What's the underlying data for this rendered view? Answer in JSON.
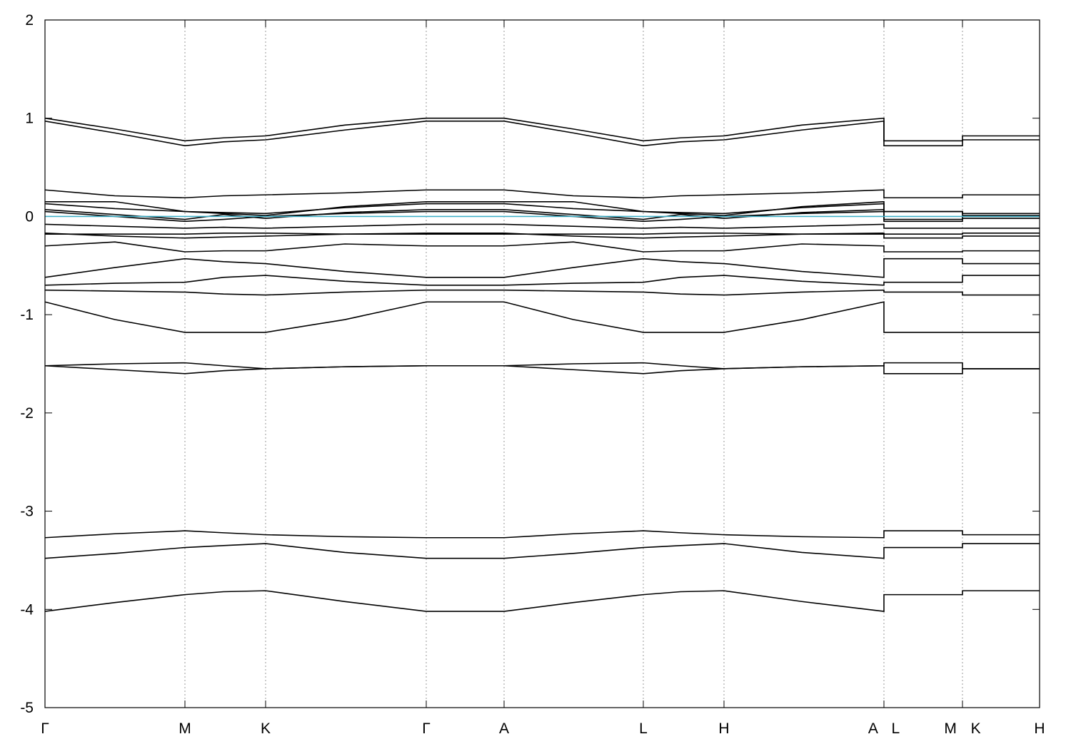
{
  "chart_data": {
    "type": "line",
    "x": [
      0,
      0.98,
      1.96,
      2.5,
      3.09,
      4.2,
      5.34,
      5.9,
      6.43,
      7.4,
      8.38,
      8.9,
      9.51,
      10.6,
      11.75,
      11.75,
      12.85,
      12.85,
      13.93
    ],
    "xlim": [
      0,
      13.93
    ],
    "xticks": [
      {
        "value": 0,
        "label": "Γ"
      },
      {
        "value": 1.96,
        "label": "M"
      },
      {
        "value": 3.09,
        "label": "K"
      },
      {
        "value": 5.34,
        "label": "Γ"
      },
      {
        "value": 6.43,
        "label": "A"
      },
      {
        "value": 8.38,
        "label": "L"
      },
      {
        "value": 9.51,
        "label": "H"
      },
      {
        "value": 11.75,
        "label": "A L"
      },
      {
        "value": 12.85,
        "label": "M K"
      },
      {
        "value": 13.93,
        "label": "H"
      }
    ],
    "ylim": [
      -5,
      2
    ],
    "yticks": [
      -5,
      -4,
      -3,
      -2,
      -1,
      0,
      1,
      2
    ],
    "grid": true,
    "series": [
      {
        "color": "#000000",
        "values": [
          -4.02,
          -3.93,
          -3.85,
          -3.82,
          -3.81,
          -3.92,
          -4.02,
          -4.02,
          -4.02,
          -3.93,
          -3.85,
          -3.82,
          -3.81,
          -3.92,
          -4.02,
          -3.85,
          -3.85,
          -3.81,
          -3.81
        ]
      },
      {
        "color": "#000000",
        "values": [
          -3.48,
          -3.43,
          -3.37,
          -3.35,
          -3.33,
          -3.42,
          -3.48,
          -3.48,
          -3.48,
          -3.43,
          -3.37,
          -3.35,
          -3.33,
          -3.42,
          -3.48,
          -3.37,
          -3.37,
          -3.33,
          -3.33
        ]
      },
      {
        "color": "#000000",
        "values": [
          -3.27,
          -3.23,
          -3.2,
          -3.22,
          -3.24,
          -3.26,
          -3.27,
          -3.27,
          -3.27,
          -3.23,
          -3.2,
          -3.22,
          -3.24,
          -3.26,
          -3.27,
          -3.2,
          -3.2,
          -3.24,
          -3.24
        ]
      },
      {
        "color": "#000000",
        "values": [
          -1.52,
          -1.5,
          -1.49,
          -1.52,
          -1.55,
          -1.53,
          -1.52,
          -1.52,
          -1.52,
          -1.5,
          -1.49,
          -1.52,
          -1.55,
          -1.53,
          -1.52,
          -1.49,
          -1.49,
          -1.55,
          -1.55
        ]
      },
      {
        "color": "#000000",
        "values": [
          -1.52,
          -1.56,
          -1.6,
          -1.57,
          -1.55,
          -1.53,
          -1.52,
          -1.52,
          -1.52,
          -1.56,
          -1.6,
          -1.57,
          -1.55,
          -1.53,
          -1.52,
          -1.6,
          -1.6,
          -1.55,
          -1.55
        ]
      },
      {
        "color": "#000000",
        "values": [
          -0.87,
          -1.05,
          -1.18,
          -1.18,
          -1.18,
          -1.05,
          -0.87,
          -0.87,
          -0.87,
          -1.05,
          -1.18,
          -1.18,
          -1.18,
          -1.05,
          -0.87,
          -1.18,
          -1.18,
          -1.18,
          -1.18
        ]
      },
      {
        "color": "#000000",
        "values": [
          -0.75,
          -0.76,
          -0.77,
          -0.79,
          -0.8,
          -0.77,
          -0.75,
          -0.75,
          -0.75,
          -0.76,
          -0.77,
          -0.79,
          -0.8,
          -0.77,
          -0.75,
          -0.77,
          -0.77,
          -0.8,
          -0.8
        ]
      },
      {
        "color": "#000000",
        "values": [
          -0.7,
          -0.68,
          -0.67,
          -0.62,
          -0.6,
          -0.66,
          -0.7,
          -0.7,
          -0.7,
          -0.68,
          -0.67,
          -0.62,
          -0.6,
          -0.66,
          -0.7,
          -0.67,
          -0.67,
          -0.6,
          -0.6
        ]
      },
      {
        "color": "#000000",
        "values": [
          -0.62,
          -0.52,
          -0.43,
          -0.46,
          -0.48,
          -0.56,
          -0.62,
          -0.62,
          -0.62,
          -0.52,
          -0.43,
          -0.46,
          -0.48,
          -0.56,
          -0.62,
          -0.43,
          -0.43,
          -0.48,
          -0.48
        ]
      },
      {
        "color": "#000000",
        "values": [
          -0.3,
          -0.26,
          -0.36,
          -0.35,
          -0.35,
          -0.28,
          -0.3,
          -0.3,
          -0.3,
          -0.26,
          -0.36,
          -0.35,
          -0.35,
          -0.28,
          -0.3,
          -0.36,
          -0.36,
          -0.35,
          -0.35
        ]
      },
      {
        "color": "#000000",
        "values": [
          -0.17,
          -0.2,
          -0.22,
          -0.21,
          -0.2,
          -0.18,
          -0.17,
          -0.17,
          -0.17,
          -0.2,
          -0.22,
          -0.21,
          -0.2,
          -0.18,
          -0.17,
          -0.22,
          -0.22,
          -0.2,
          -0.2
        ]
      },
      {
        "color": "#000000",
        "values": [
          -0.18,
          -0.18,
          -0.18,
          -0.17,
          -0.17,
          -0.18,
          -0.18,
          -0.18,
          -0.18,
          -0.18,
          -0.18,
          -0.17,
          -0.17,
          -0.18,
          -0.18,
          -0.18,
          -0.18,
          -0.17,
          -0.17
        ]
      },
      {
        "color": "#000000",
        "values": [
          -0.08,
          -0.1,
          -0.12,
          -0.11,
          -0.12,
          -0.1,
          -0.08,
          -0.08,
          -0.08,
          -0.1,
          -0.12,
          -0.11,
          -0.12,
          -0.1,
          -0.08,
          -0.12,
          -0.12,
          -0.12,
          -0.12
        ]
      },
      {
        "color": "#000000",
        "values": [
          0.05,
          0,
          -0.05,
          -0.03,
          0,
          0.03,
          0.05,
          0.05,
          0.05,
          0,
          -0.05,
          -0.03,
          0,
          0.03,
          0.05,
          -0.05,
          -0.05,
          0,
          0
        ]
      },
      {
        "color": "#000000",
        "values": [
          0.07,
          0.02,
          -0.03,
          0.02,
          -0.02,
          0.04,
          0.07,
          0.07,
          0.07,
          0.02,
          -0.03,
          0.02,
          -0.02,
          0.04,
          0.07,
          -0.03,
          -0.03,
          -0.02,
          -0.02
        ]
      },
      {
        "color": "#000000",
        "values": [
          0.13,
          0.08,
          0.05,
          0.04,
          0.03,
          0.09,
          0.13,
          0.13,
          0.13,
          0.08,
          0.05,
          0.04,
          0.03,
          0.09,
          0.13,
          0.05,
          0.05,
          0.03,
          0.03
        ]
      },
      {
        "color": "#000000",
        "values": [
          0.15,
          0.15,
          0.05,
          0.03,
          0.01,
          0.1,
          0.15,
          0.15,
          0.15,
          0.15,
          0.05,
          0.03,
          0.01,
          0.1,
          0.15,
          0.05,
          0.05,
          0.01,
          0.01
        ]
      },
      {
        "color": "#000000",
        "values": [
          0.27,
          0.21,
          0.19,
          0.21,
          0.22,
          0.24,
          0.27,
          0.27,
          0.27,
          0.21,
          0.19,
          0.21,
          0.22,
          0.24,
          0.27,
          0.19,
          0.19,
          0.22,
          0.22
        ]
      },
      {
        "color": "#000000",
        "values": [
          0.97,
          0.85,
          0.72,
          0.76,
          0.78,
          0.88,
          0.97,
          0.97,
          0.97,
          0.85,
          0.72,
          0.76,
          0.78,
          0.88,
          0.97,
          0.72,
          0.72,
          0.78,
          0.78
        ]
      },
      {
        "color": "#000000",
        "values": [
          1,
          0.89,
          0.77,
          0.8,
          0.82,
          0.93,
          1,
          1,
          1,
          0.89,
          0.77,
          0.8,
          0.82,
          0.93,
          1,
          0.77,
          0.77,
          0.82,
          0.82
        ]
      },
      {
        "color": "#40b0c8",
        "values": [
          0,
          0,
          0,
          0,
          0,
          0,
          0,
          0,
          0,
          0,
          0,
          0,
          0,
          0,
          0,
          0,
          0,
          0,
          0
        ]
      }
    ]
  }
}
